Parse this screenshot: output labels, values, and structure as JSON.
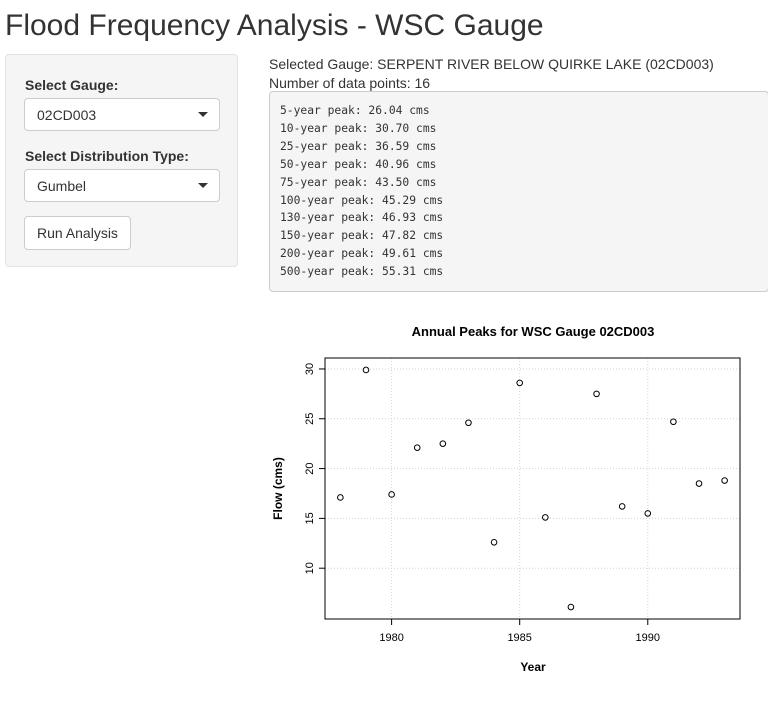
{
  "page": {
    "title": "Flood Frequency Analysis - WSC Gauge"
  },
  "sidebar": {
    "gauge_label": "Select Gauge:",
    "gauge_value": "02CD003",
    "dist_label": "Select Distribution Type:",
    "dist_value": "Gumbel",
    "run_button": "Run Analysis"
  },
  "info": {
    "selected_gauge": "Selected Gauge: SERPENT RIVER BELOW QUIRKE LAKE (02CD003)",
    "data_points": "Number of data points: 16"
  },
  "results": [
    "5-year peak: 26.04 cms",
    "10-year peak: 30.70 cms",
    "25-year peak: 36.59 cms",
    "50-year peak: 40.96 cms",
    "75-year peak: 43.50 cms",
    "100-year peak: 45.29 cms",
    "130-year peak: 46.93 cms",
    "150-year peak: 47.82 cms",
    "200-year peak: 49.61 cms",
    "500-year peak: 55.31 cms"
  ],
  "chart_data": {
    "type": "scatter",
    "title": "Annual Peaks for WSC Gauge 02CD003",
    "xlabel": "Year",
    "ylabel": "Flow (cms)",
    "xlim": [
      1977.4,
      1993.6
    ],
    "ylim": [
      4.9,
      31.1
    ],
    "xticks": [
      1980,
      1985,
      1990
    ],
    "yticks": [
      10,
      15,
      20,
      25,
      30
    ],
    "grid": true,
    "x": [
      1978,
      1979,
      1980,
      1981,
      1982,
      1983,
      1984,
      1985,
      1986,
      1987,
      1988,
      1989,
      1990,
      1991,
      1992,
      1993
    ],
    "y": [
      17.1,
      29.9,
      17.4,
      22.1,
      22.5,
      24.6,
      12.6,
      28.6,
      15.1,
      6.1,
      27.5,
      16.2,
      15.5,
      24.7,
      18.5,
      18.8
    ],
    "point_color": "#000000"
  }
}
